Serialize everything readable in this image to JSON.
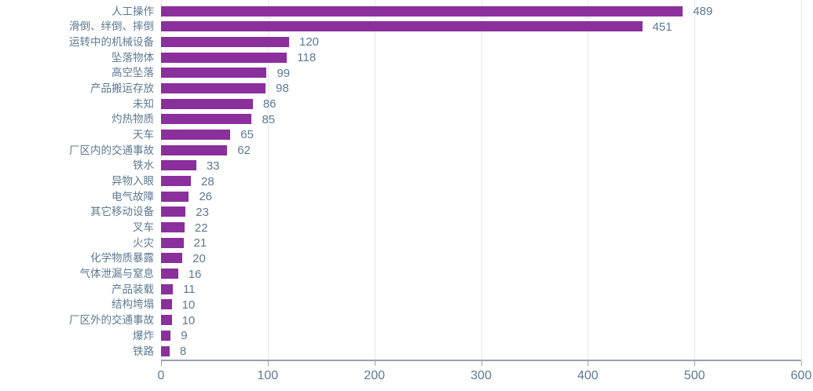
{
  "chart_data": {
    "type": "bar",
    "orientation": "horizontal",
    "title": "",
    "categories": [
      "人工操作",
      "滑倒、绊倒、摔倒",
      "运转中的机械设备",
      "坠落物体",
      "高空坠落",
      "产品搬运存放",
      "未知",
      "灼热物质",
      "天车",
      "厂区内的交通事故",
      "铁水",
      "异物入眼",
      "电气故障",
      "其它移动设备",
      "叉车",
      "火灾",
      "化学物质暴露",
      "气体泄漏与窒息",
      "产品装载",
      "结构垮塌",
      "厂区外的交通事故",
      "爆炸",
      "铁路"
    ],
    "values": [
      489,
      451,
      120,
      118,
      99,
      98,
      86,
      85,
      65,
      62,
      33,
      28,
      26,
      23,
      22,
      21,
      20,
      16,
      11,
      10,
      10,
      9,
      8
    ],
    "xlabel": "",
    "ylabel": "",
    "xlim": [
      0,
      600
    ],
    "x_ticks": [
      "0",
      "100",
      "200",
      "300",
      "400",
      "500",
      "600"
    ],
    "grid": true,
    "value_labels_shown": true,
    "legend": "none"
  },
  "style": {
    "bar_color": "#8B2F9C",
    "text_color": "#5D7A93",
    "grid_color": "#E5E7E9",
    "axis_color": "#94A2AE",
    "background_color": "#FFFFFF"
  }
}
